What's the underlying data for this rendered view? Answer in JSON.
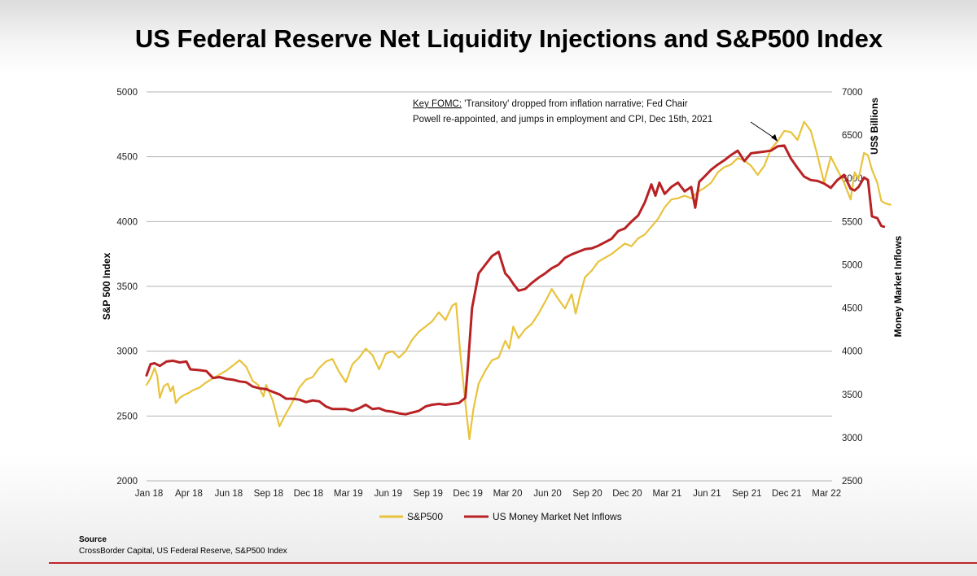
{
  "title": "US Federal Reserve Net Liquidity Injections and S&P500 Index",
  "source": {
    "heading": "Source",
    "text": "CrossBorder Capital, US Federal Reserve, S&P500 Index"
  },
  "colors": {
    "sp500": "#e8c33c",
    "inflows": "#b82224",
    "grid": "#b3b3b3"
  },
  "chart_data": {
    "type": "line",
    "left_axis": {
      "label": "S&P 500 Index",
      "ylim": [
        2000,
        5000
      ],
      "ticks": [
        2000,
        2500,
        3000,
        3500,
        4000,
        4500,
        5000
      ]
    },
    "right_axis": {
      "label_top": "US$ Billions",
      "label": "Money Market Inflows",
      "ylim": [
        2500,
        7000
      ],
      "ticks": [
        2500,
        3000,
        3500,
        4000,
        4500,
        5000,
        5500,
        6000,
        6500,
        7000
      ]
    },
    "x_tick_labels": [
      "Jan 18",
      "Apr 18",
      "Jun 18",
      "Sep 18",
      "Dec 18",
      "Mar 19",
      "Jun 19",
      "Sep 19",
      "Dec 19",
      "Mar 20",
      "Jun 20",
      "Sep 20",
      "Dec 20",
      "Mar 21",
      "Jun 21",
      "Sep 21",
      "Dec 21",
      "Mar 22"
    ],
    "grid": true,
    "legend_position": "bottom",
    "annotation": {
      "label": "Key FOMC:",
      "text_line1": " 'Transitory' dropped from inflation narrative; Fed Chair",
      "text_line2": "Powell re-appointed, and jumps in employment and CPI, Dec 15th, 2021",
      "x": 47.5
    },
    "series": [
      {
        "name": "S&P500",
        "axis": "left",
        "points": [
          [
            0,
            2740
          ],
          [
            0.3,
            2790
          ],
          [
            0.6,
            2870
          ],
          [
            0.8,
            2810
          ],
          [
            1.0,
            2640
          ],
          [
            1.3,
            2730
          ],
          [
            1.6,
            2750
          ],
          [
            1.8,
            2690
          ],
          [
            2.0,
            2730
          ],
          [
            2.2,
            2600
          ],
          [
            2.5,
            2640
          ],
          [
            2.8,
            2660
          ],
          [
            3.2,
            2680
          ],
          [
            3.5,
            2700
          ],
          [
            4.0,
            2720
          ],
          [
            4.5,
            2760
          ],
          [
            5.0,
            2790
          ],
          [
            5.5,
            2820
          ],
          [
            6.0,
            2850
          ],
          [
            6.5,
            2890
          ],
          [
            7.0,
            2930
          ],
          [
            7.5,
            2880
          ],
          [
            8.0,
            2770
          ],
          [
            8.4,
            2740
          ],
          [
            8.8,
            2650
          ],
          [
            9.0,
            2740
          ],
          [
            9.5,
            2620
          ],
          [
            10.0,
            2420
          ],
          [
            10.4,
            2500
          ],
          [
            11.0,
            2610
          ],
          [
            11.5,
            2720
          ],
          [
            12.0,
            2780
          ],
          [
            12.5,
            2800
          ],
          [
            13.0,
            2870
          ],
          [
            13.5,
            2920
          ],
          [
            14.0,
            2940
          ],
          [
            14.5,
            2840
          ],
          [
            15.0,
            2760
          ],
          [
            15.5,
            2900
          ],
          [
            16.0,
            2950
          ],
          [
            16.5,
            3020
          ],
          [
            17.0,
            2970
          ],
          [
            17.5,
            2860
          ],
          [
            18.0,
            2980
          ],
          [
            18.5,
            3000
          ],
          [
            19.0,
            2950
          ],
          [
            19.5,
            3000
          ],
          [
            20.0,
            3090
          ],
          [
            20.5,
            3150
          ],
          [
            21.0,
            3190
          ],
          [
            21.5,
            3230
          ],
          [
            22.0,
            3300
          ],
          [
            22.5,
            3240
          ],
          [
            23.0,
            3350
          ],
          [
            23.3,
            3370
          ],
          [
            23.6,
            3000
          ],
          [
            24.0,
            2600
          ],
          [
            24.3,
            2320
          ],
          [
            24.6,
            2550
          ],
          [
            25.0,
            2750
          ],
          [
            25.5,
            2850
          ],
          [
            26.0,
            2930
          ],
          [
            26.5,
            2950
          ],
          [
            27.0,
            3080
          ],
          [
            27.3,
            3020
          ],
          [
            27.6,
            3190
          ],
          [
            28.0,
            3100
          ],
          [
            28.5,
            3170
          ],
          [
            29.0,
            3210
          ],
          [
            29.5,
            3290
          ],
          [
            30.0,
            3380
          ],
          [
            30.5,
            3480
          ],
          [
            31.0,
            3400
          ],
          [
            31.5,
            3330
          ],
          [
            32.0,
            3440
          ],
          [
            32.3,
            3290
          ],
          [
            32.6,
            3420
          ],
          [
            33.0,
            3570
          ],
          [
            33.5,
            3620
          ],
          [
            34.0,
            3690
          ],
          [
            34.5,
            3720
          ],
          [
            35.0,
            3750
          ],
          [
            35.5,
            3790
          ],
          [
            36.0,
            3830
          ],
          [
            36.5,
            3810
          ],
          [
            37.0,
            3870
          ],
          [
            37.5,
            3900
          ],
          [
            38.0,
            3960
          ],
          [
            38.5,
            4020
          ],
          [
            39.0,
            4110
          ],
          [
            39.5,
            4170
          ],
          [
            40.0,
            4180
          ],
          [
            40.5,
            4200
          ],
          [
            41.0,
            4180
          ],
          [
            41.5,
            4230
          ],
          [
            42.0,
            4260
          ],
          [
            42.5,
            4300
          ],
          [
            43.0,
            4380
          ],
          [
            43.5,
            4420
          ],
          [
            44.0,
            4440
          ],
          [
            44.5,
            4490
          ],
          [
            45.0,
            4470
          ],
          [
            45.5,
            4430
          ],
          [
            46.0,
            4360
          ],
          [
            46.5,
            4430
          ],
          [
            47.0,
            4560
          ],
          [
            47.5,
            4620
          ],
          [
            48.0,
            4700
          ],
          [
            48.5,
            4690
          ],
          [
            49.0,
            4630
          ],
          [
            49.5,
            4770
          ],
          [
            50.0,
            4700
          ],
          [
            50.5,
            4510
          ],
          [
            51.0,
            4300
          ],
          [
            51.5,
            4500
          ],
          [
            52.0,
            4400
          ],
          [
            52.5,
            4300
          ],
          [
            53.0,
            4170
          ],
          [
            53.3,
            4380
          ],
          [
            53.6,
            4330
          ],
          [
            54.0,
            4530
          ],
          [
            54.3,
            4510
          ],
          [
            54.6,
            4400
          ],
          [
            55.0,
            4300
          ],
          [
            55.3,
            4160
          ],
          [
            55.6,
            4140
          ],
          [
            56.0,
            4130
          ]
        ]
      },
      {
        "name": "US Money Market Net Inflows",
        "axis": "right",
        "points": [
          [
            0,
            3720
          ],
          [
            0.3,
            3850
          ],
          [
            0.6,
            3860
          ],
          [
            1.0,
            3830
          ],
          [
            1.5,
            3880
          ],
          [
            2.0,
            3890
          ],
          [
            2.5,
            3870
          ],
          [
            3.0,
            3880
          ],
          [
            3.3,
            3790
          ],
          [
            4.0,
            3780
          ],
          [
            4.5,
            3770
          ],
          [
            5.0,
            3690
          ],
          [
            5.5,
            3700
          ],
          [
            6.0,
            3680
          ],
          [
            6.5,
            3670
          ],
          [
            7.0,
            3650
          ],
          [
            7.5,
            3640
          ],
          [
            8.0,
            3590
          ],
          [
            8.5,
            3570
          ],
          [
            9.0,
            3560
          ],
          [
            9.5,
            3530
          ],
          [
            10.0,
            3500
          ],
          [
            10.5,
            3450
          ],
          [
            11.0,
            3450
          ],
          [
            11.5,
            3440
          ],
          [
            12.0,
            3410
          ],
          [
            12.5,
            3430
          ],
          [
            13.0,
            3420
          ],
          [
            13.5,
            3360
          ],
          [
            14.0,
            3330
          ],
          [
            14.5,
            3330
          ],
          [
            15.0,
            3330
          ],
          [
            15.5,
            3310
          ],
          [
            16.0,
            3340
          ],
          [
            16.5,
            3380
          ],
          [
            17.0,
            3330
          ],
          [
            17.5,
            3340
          ],
          [
            18.0,
            3310
          ],
          [
            18.5,
            3300
          ],
          [
            19.0,
            3280
          ],
          [
            19.5,
            3270
          ],
          [
            20.0,
            3290
          ],
          [
            20.5,
            3310
          ],
          [
            21.0,
            3360
          ],
          [
            21.5,
            3380
          ],
          [
            22.0,
            3390
          ],
          [
            22.5,
            3380
          ],
          [
            23.0,
            3390
          ],
          [
            23.5,
            3400
          ],
          [
            24.0,
            3460
          ],
          [
            24.2,
            3850
          ],
          [
            24.5,
            4500
          ],
          [
            25.0,
            4900
          ],
          [
            25.5,
            5000
          ],
          [
            26.0,
            5100
          ],
          [
            26.5,
            5150
          ],
          [
            26.8,
            5000
          ],
          [
            27.0,
            4900
          ],
          [
            27.3,
            4850
          ],
          [
            27.6,
            4780
          ],
          [
            28.0,
            4700
          ],
          [
            28.5,
            4720
          ],
          [
            29.0,
            4790
          ],
          [
            29.5,
            4850
          ],
          [
            30.0,
            4900
          ],
          [
            30.5,
            4960
          ],
          [
            31.0,
            5000
          ],
          [
            31.5,
            5080
          ],
          [
            32.0,
            5120
          ],
          [
            32.5,
            5150
          ],
          [
            33.0,
            5180
          ],
          [
            33.5,
            5190
          ],
          [
            34.0,
            5220
          ],
          [
            34.5,
            5260
          ],
          [
            35.0,
            5300
          ],
          [
            35.5,
            5390
          ],
          [
            36.0,
            5420
          ],
          [
            36.5,
            5500
          ],
          [
            37.0,
            5570
          ],
          [
            37.5,
            5720
          ],
          [
            38.0,
            5930
          ],
          [
            38.3,
            5800
          ],
          [
            38.6,
            5950
          ],
          [
            39.0,
            5820
          ],
          [
            39.5,
            5900
          ],
          [
            40.0,
            5950
          ],
          [
            40.5,
            5850
          ],
          [
            41.0,
            5900
          ],
          [
            41.3,
            5660
          ],
          [
            41.6,
            5960
          ],
          [
            42.0,
            6020
          ],
          [
            42.5,
            6100
          ],
          [
            43.0,
            6160
          ],
          [
            43.5,
            6210
          ],
          [
            44.0,
            6270
          ],
          [
            44.5,
            6320
          ],
          [
            45.0,
            6200
          ],
          [
            45.5,
            6290
          ],
          [
            46.0,
            6300
          ],
          [
            46.5,
            6310
          ],
          [
            47.0,
            6320
          ],
          [
            47.5,
            6370
          ],
          [
            48.0,
            6380
          ],
          [
            48.5,
            6230
          ],
          [
            49.0,
            6120
          ],
          [
            49.5,
            6020
          ],
          [
            50.0,
            5980
          ],
          [
            50.5,
            5970
          ],
          [
            51.0,
            5940
          ],
          [
            51.5,
            5890
          ],
          [
            52.0,
            5980
          ],
          [
            52.5,
            6040
          ],
          [
            53.0,
            5880
          ],
          [
            53.3,
            5860
          ],
          [
            53.6,
            5900
          ],
          [
            54.0,
            6010
          ],
          [
            54.3,
            5980
          ],
          [
            54.6,
            5560
          ],
          [
            55.0,
            5540
          ],
          [
            55.3,
            5450
          ],
          [
            55.5,
            5440
          ]
        ]
      }
    ]
  },
  "legend": [
    {
      "label": "S&P500",
      "color": "#e8c33c"
    },
    {
      "label": "US Money Market Net Inflows",
      "color": "#b82224"
    }
  ]
}
